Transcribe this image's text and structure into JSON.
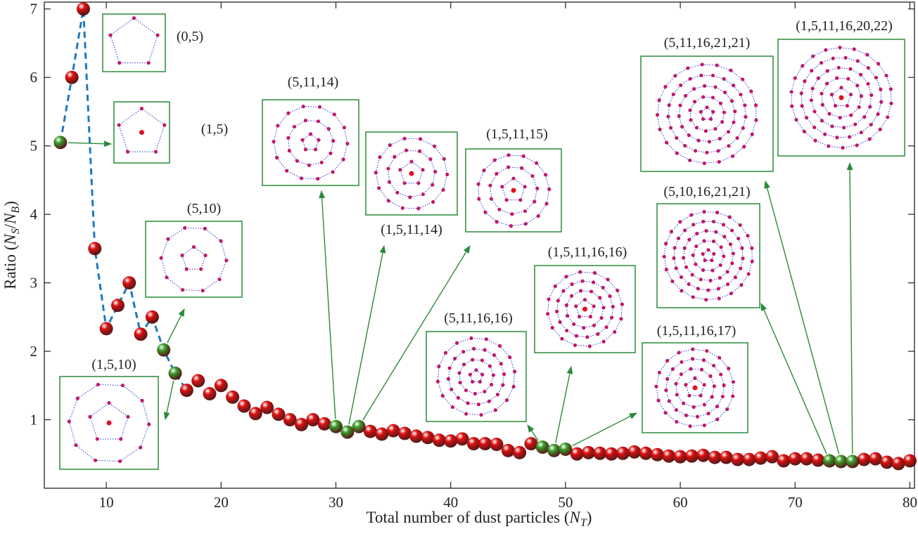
{
  "chart_data": {
    "type": "scatter",
    "xlabel": "Total number of dust particles (N_T)",
    "ylabel": "Ratio (N_S/N_B)",
    "xlim": [
      4.6,
      80.4
    ],
    "ylim": [
      0,
      7.1
    ],
    "xticks": [
      10,
      20,
      30,
      40,
      50,
      60,
      70,
      80
    ],
    "yticks": [
      1,
      2,
      3,
      4,
      5,
      6,
      7
    ],
    "series": [
      {
        "color": "#e01010",
        "x": [
          7,
          8,
          9,
          10,
          11,
          12,
          13,
          14,
          17,
          18,
          19,
          20,
          21,
          22,
          23,
          24,
          25,
          26,
          27,
          28,
          29,
          33,
          34,
          35,
          36,
          37,
          38,
          39,
          40,
          41,
          42,
          43,
          44,
          45,
          46,
          47,
          51,
          52,
          53,
          54,
          55,
          56,
          57,
          58,
          59,
          60,
          61,
          62,
          63,
          64,
          65,
          66,
          67,
          68,
          69,
          70,
          71,
          72,
          76,
          77,
          78,
          79,
          80
        ],
        "values": [
          6.0,
          7.0,
          3.5,
          2.33,
          2.67,
          3.0,
          2.25,
          2.5,
          1.43,
          1.57,
          1.38,
          1.5,
          1.33,
          1.2,
          1.09,
          1.18,
          1.08,
          1.0,
          0.93,
          1.0,
          0.94,
          0.83,
          0.79,
          0.84,
          0.8,
          0.76,
          0.74,
          0.7,
          0.69,
          0.72,
          0.65,
          0.65,
          0.64,
          0.55,
          0.52,
          0.65,
          0.5,
          0.52,
          0.51,
          0.5,
          0.51,
          0.53,
          0.51,
          0.49,
          0.47,
          0.46,
          0.47,
          0.48,
          0.45,
          0.45,
          0.42,
          0.42,
          0.44,
          0.46,
          0.4,
          0.43,
          0.43,
          0.41,
          0.42,
          0.43,
          0.38,
          0.36,
          0.4
        ]
      },
      {
        "color": "#3aa02a",
        "x": [
          6,
          15,
          16,
          30,
          31,
          32,
          48,
          49,
          50,
          73,
          74,
          75
        ],
        "values": [
          5.05,
          2.02,
          1.68,
          0.9,
          0.82,
          0.9,
          0.6,
          0.55,
          0.57,
          0.4,
          0.39,
          0.39
        ]
      }
    ],
    "dashed_line": {
      "color": "#1f78c0",
      "x_max": 17
    },
    "annotations": [
      "(0,5)",
      "(1,5)",
      "(5,10)",
      "(1,5,10)",
      "(5,11,14)",
      "(1,5,11,14)",
      "(1,5,11,15)",
      "(5,11,16,16)",
      "(1,5,11,16,16)",
      "(1,5,11,16,17)",
      "(5,10,16,21,21)",
      "(5,11,16,21,21)",
      "(1,5,11,16,20,22)"
    ]
  }
}
